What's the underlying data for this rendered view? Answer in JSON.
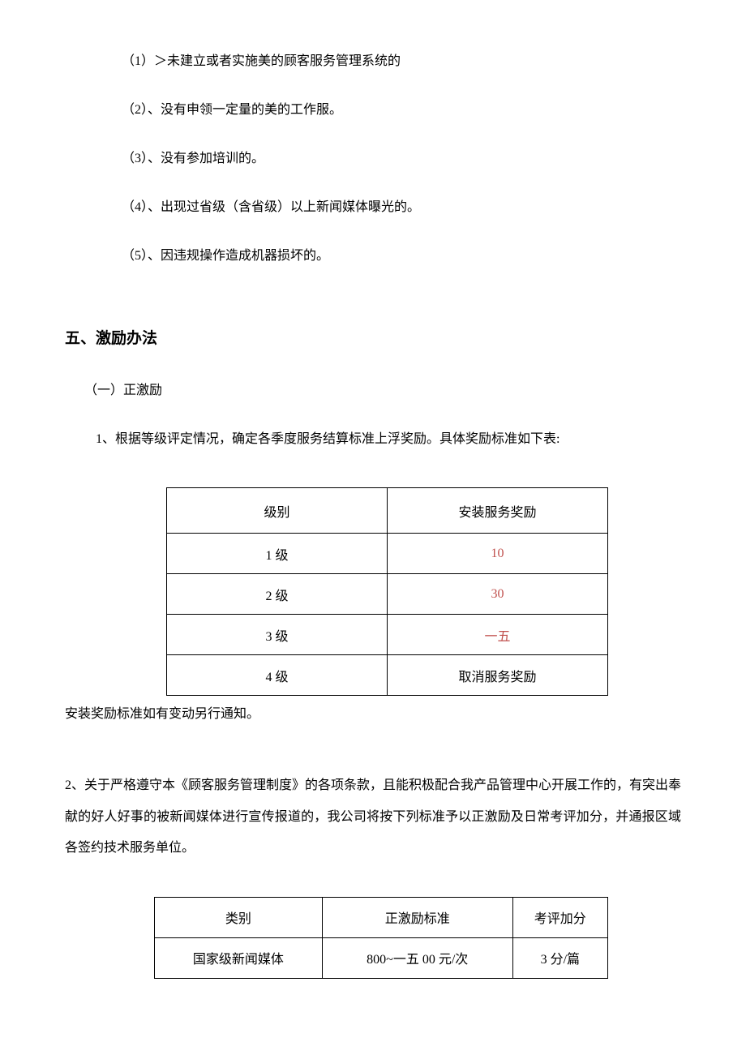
{
  "list_items": [
    "（1）＞未建立或者实施美的顾客服务管理系统的",
    "（2）、没有申领一定量的美的工作服。",
    "（3）、没有参加培训的。",
    "（4）、出现过省级（含省级）以上新闻媒体曝光的。",
    "（5）、因违规操作造成机器损坏的。"
  ],
  "section_heading": "五、激励办法",
  "sub_heading": "（一）正激励",
  "paragraph1": "1、根据等级评定情况，确定各季度服务结算标准上浮奖励。具体奖励标准如下表:",
  "table1": {
    "headers": [
      "级别",
      "安装服务奖励"
    ],
    "rows": [
      {
        "level": "1 级",
        "reward": "10",
        "reward_color": "#c0504d"
      },
      {
        "level": "2 级",
        "reward": "30",
        "reward_color": "#c0504d"
      },
      {
        "level": "3 级",
        "reward": "一五",
        "reward_color": "#c0504d"
      },
      {
        "level": "4 级",
        "reward": "取消服务奖励",
        "reward_color": "#000000"
      }
    ]
  },
  "note": "安装奖励标准如有变动另行通知。",
  "paragraph2": "2、关于严格遵守本《顾客服务管理制度》的各项条款，且能积极配合我产品管理中心开展工作的，有突出奉献的好人好事的被新闻媒体进行宣传报道的，我公司将按下列标准予以正激励及日常考评加分，并通报区域各签约技术服务单位。",
  "table2": {
    "headers": [
      "类别",
      "正激励标准",
      "考评加分"
    ],
    "rows": [
      {
        "category": "国家级新闻媒体",
        "standard": "800~一五 00 元/次",
        "score": "3 分/篇"
      }
    ]
  },
  "colors": {
    "text": "#000000",
    "accent": "#c0504d",
    "background": "#ffffff",
    "border": "#000000"
  }
}
